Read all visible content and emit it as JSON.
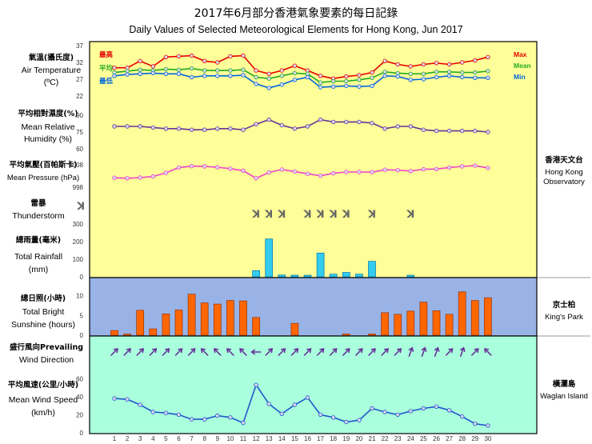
{
  "title_zh": "2017年6月部分香港氣象要素的每日記錄",
  "title_en": "Daily Values of Selected Meteorological Elements for Hong Kong, Jun 2017",
  "labels": {
    "temp_zh": "氣溫(攝氏度)",
    "temp_en1": "Air Temperature",
    "temp_en2": "(ºC)",
    "max_zh": "最高",
    "mean_zh": "平均",
    "min_zh": "最低",
    "max_en": "Max",
    "mean_en": "Mean",
    "min_en": "Min",
    "hum_zh": "平均相對濕度(%)",
    "hum_en1": "Mean Relative",
    "hum_en2": "Humidity  (%)",
    "pres_zh": "平均氣壓(百帕斯卡)",
    "pres_en": "Mean Pressure (hPa)",
    "thunder_zh": "雷暴",
    "thunder_en": "Thunderstorm",
    "thunder_symbol": "ꓘ",
    "rain_zh": "總雨量(毫米)",
    "rain_en1": "Total Rainfall",
    "rain_en2": "(mm)",
    "sun_zh": "總日照(小時)",
    "sun_en1": "Total Bright",
    "sun_en2": "Sunshine  (hours)",
    "wdir_zh": "盛行風向Prevailing",
    "wdir_en": "Wind Direction",
    "wspd_zh": "平均風速(公里/小時)",
    "wspd_en1": "Mean Wind Speed",
    "wspd_en2": "(km/h)"
  },
  "stations": {
    "hko_zh": "香港天文台",
    "hko_en1": "Hong Kong",
    "hko_en2": "Observatory",
    "kp_zh": "京士柏",
    "kp_en": "King's Park",
    "wgl_zh": "橫瀾島",
    "wgl_en": "Waglan Island"
  },
  "colors": {
    "top_panel": "#ffff99",
    "sun_panel": "#99b3e6",
    "wind_panel": "#aaffdd",
    "max": "#e60000",
    "mean": "#22aa22",
    "min": "#0066dd",
    "humidity": "#663399",
    "pressure": "#ee44cc",
    "rain": "#33ccee",
    "sunshine": "#ff6600",
    "wind_arrow": "#663399",
    "wind_speed": "#2255cc"
  },
  "chart_data": {
    "type": "line",
    "x": [
      1,
      2,
      3,
      4,
      5,
      6,
      7,
      8,
      9,
      10,
      11,
      12,
      13,
      14,
      15,
      16,
      17,
      18,
      19,
      20,
      21,
      22,
      23,
      24,
      25,
      26,
      27,
      28,
      29,
      30
    ],
    "x_ticks": [
      "1",
      "2",
      "3",
      "4",
      "5",
      "6",
      "7",
      "8",
      "9",
      "10",
      "11",
      "12",
      "13",
      "14",
      "15",
      "16",
      "17",
      "18",
      "19",
      "20",
      "21",
      "22",
      "23",
      "24",
      "25",
      "26",
      "27",
      "28",
      "29",
      "30"
    ],
    "temperature": {
      "ylim": [
        22,
        37
      ],
      "ticks": [
        "37",
        "32",
        "27",
        "22"
      ],
      "max": [
        30.4,
        30.4,
        32.4,
        30.8,
        33.6,
        33.8,
        34.0,
        32.4,
        32.0,
        33.8,
        34.0,
        29.6,
        28.6,
        29.6,
        31.0,
        29.6,
        28.0,
        27.2,
        27.8,
        28.2,
        29.0,
        32.4,
        31.4,
        30.8,
        31.4,
        31.8,
        31.4,
        32.0,
        32.6,
        33.6
      ],
      "mean": [
        29.0,
        29.4,
        29.8,
        29.6,
        30.0,
        29.8,
        30.2,
        29.6,
        29.6,
        29.6,
        29.8,
        27.6,
        27.2,
        28.0,
        28.8,
        28.6,
        26.0,
        26.4,
        26.4,
        26.8,
        27.4,
        29.2,
        28.8,
        28.6,
        28.6,
        29.2,
        29.2,
        29.0,
        29.0,
        29.4
      ],
      "min": [
        28.0,
        28.4,
        28.6,
        28.8,
        28.6,
        28.6,
        27.6,
        28.0,
        28.0,
        28.0,
        28.2,
        25.6,
        24.4,
        25.4,
        26.8,
        27.6,
        24.6,
        24.8,
        25.0,
        24.8,
        25.0,
        28.0,
        27.8,
        26.8,
        27.0,
        27.6,
        28.0,
        27.6,
        27.4,
        27.4
      ]
    },
    "humidity": {
      "ylim": [
        60,
        90
      ],
      "ticks": [
        "90",
        "75",
        "60"
      ],
      "values": [
        80,
        80,
        80,
        79,
        78,
        78,
        77,
        77,
        78,
        78,
        77,
        82,
        86,
        81,
        78,
        80,
        86,
        84,
        84,
        84,
        83,
        78,
        80,
        80,
        77,
        76,
        76,
        76,
        76,
        75
      ]
    },
    "pressure": {
      "ylim": [
        998,
        1008
      ],
      "ticks": [
        "1008",
        "998"
      ],
      "values": [
        1002.2,
        1002.0,
        1002.3,
        1002.8,
        1004.4,
        1006.8,
        1007.4,
        1007.3,
        1006.9,
        1006.3,
        1005.4,
        1002.0,
        1004.6,
        1005.9,
        1005.0,
        1004.0,
        1003.1,
        1004.2,
        1004.8,
        1004.8,
        1004.7,
        1005.8,
        1005.6,
        1005.2,
        1006.0,
        1006.1,
        1006.8,
        1007.3,
        1007.6,
        1006.6
      ]
    },
    "thunderstorm_days": [
      12,
      13,
      14,
      16,
      17,
      18,
      19,
      21,
      24
    ],
    "rainfall": {
      "ylim": [
        0,
        300
      ],
      "ticks": [
        "300",
        "200",
        "100",
        "0"
      ],
      "values": [
        0,
        0,
        0,
        0,
        0,
        0,
        0,
        0,
        0,
        0,
        0,
        35,
        215,
        10,
        8,
        8,
        135,
        15,
        25,
        15,
        88,
        0,
        0,
        5,
        0,
        0,
        0,
        0,
        0,
        0
      ]
    },
    "sunshine": {
      "ylim": [
        0,
        14
      ],
      "ticks": [
        "10",
        "5",
        "0"
      ],
      "values": [
        1.2,
        0.3,
        6.3,
        1.6,
        5.4,
        6.4,
        10.4,
        8.2,
        7.9,
        8.8,
        8.7,
        4.5,
        0,
        0,
        3.0,
        0,
        0,
        0,
        0.1,
        0,
        0.3,
        5.7,
        5.3,
        6.1,
        8.4,
        6.2,
        5.3,
        11.0,
        8.8,
        9.5
      ]
    },
    "wind_direction_deg": [
      45,
      45,
      45,
      45,
      45,
      45,
      45,
      315,
      315,
      315,
      315,
      270,
      45,
      45,
      45,
      45,
      45,
      45,
      45,
      45,
      45,
      45,
      45,
      20,
      20,
      20,
      45,
      20,
      45,
      315
    ],
    "wind_speed": {
      "ylim": [
        0,
        70
      ],
      "ticks": [
        "60",
        "40",
        "20",
        "0"
      ],
      "values": [
        38,
        37,
        31,
        23,
        22,
        20,
        15,
        15,
        19,
        17,
        11,
        53,
        32,
        21,
        31,
        39,
        20,
        17,
        12,
        14,
        27,
        23,
        20,
        24,
        27,
        29,
        25,
        18,
        10,
        8
      ]
    }
  }
}
